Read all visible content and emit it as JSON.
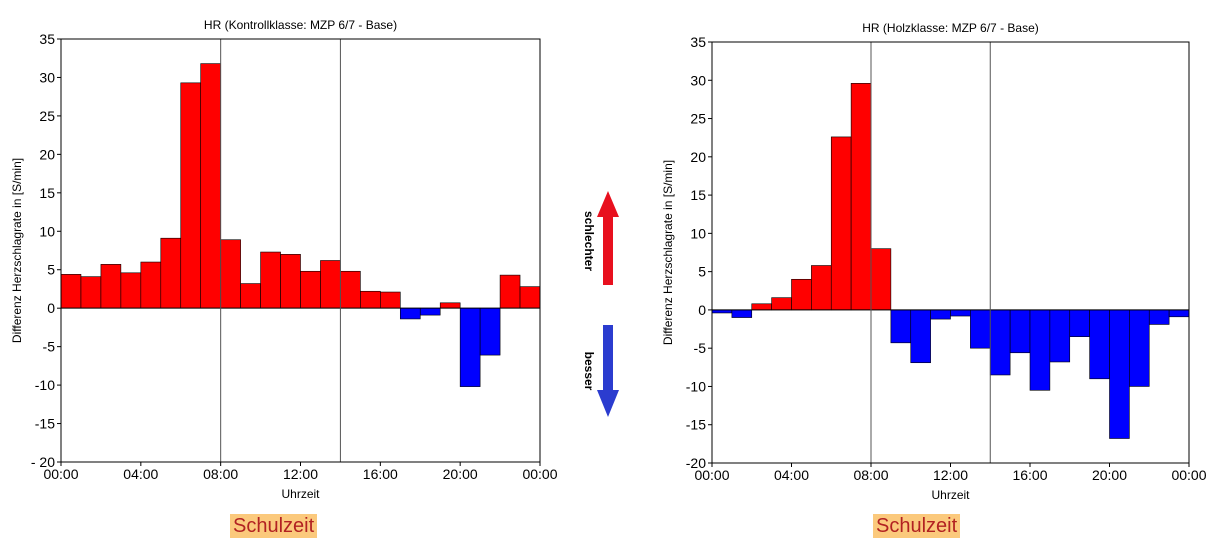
{
  "colors": {
    "positive": "#ff0000",
    "negative": "#0000ff",
    "arrow_up": "#e8101e",
    "arrow_down": "#2b3ccf",
    "badge_bg": "#fbc97c",
    "badge_text": "#b22222"
  },
  "legend": {
    "worse_label": "schlechter",
    "better_label": "besser"
  },
  "chart_data": [
    {
      "type": "bar",
      "title": "HR  (Kontrollklasse: MZP 6/7 - Base)",
      "xlabel": "Uhrzeit",
      "ylabel": "Differenz Herzschlagrate in [S/min]",
      "ylim": [
        -20,
        35
      ],
      "yticks": [
        -20,
        -15,
        -10,
        -5,
        0,
        5,
        10,
        15,
        20,
        25,
        30,
        35
      ],
      "ytick_labels": [
        "- 20",
        "-15",
        "-10",
        "-5",
        "0",
        "5",
        "10",
        "15",
        "20",
        "25",
        "30",
        "35"
      ],
      "xlim": [
        0,
        24
      ],
      "xtick_labels": [
        "00:00",
        "04:00",
        "08:00",
        "12:00",
        "16:00",
        "20:00",
        "00:00"
      ],
      "vlines": [
        8,
        14
      ],
      "grid": false,
      "x": [
        0,
        1,
        2,
        3,
        4,
        5,
        6,
        7,
        8,
        9,
        10,
        11,
        12,
        13,
        14,
        15,
        16,
        17,
        18,
        19,
        20,
        21,
        22,
        23
      ],
      "values": [
        4.4,
        4.1,
        5.7,
        4.6,
        6.0,
        9.1,
        29.3,
        31.8,
        8.9,
        3.2,
        7.3,
        7.0,
        4.8,
        6.2,
        4.8,
        2.2,
        2.1,
        -1.4,
        -0.9,
        0.7,
        -10.2,
        -6.1,
        4.3,
        2.8
      ],
      "annotation": "Schulzeit"
    },
    {
      "type": "bar",
      "title": "HR  (Holzklasse: MZP 6/7 - Base)",
      "xlabel": "Uhrzeit",
      "ylabel": "Differenz Herzschlagrate in [S/min]",
      "ylim": [
        -20,
        35
      ],
      "yticks": [
        -20,
        -15,
        -10,
        -5,
        0,
        5,
        10,
        15,
        20,
        25,
        30,
        35
      ],
      "ytick_labels": [
        "-20",
        "-15",
        "-10",
        "-5",
        "0",
        "5",
        "10",
        "15",
        "20",
        "25",
        "30",
        "35"
      ],
      "xlim": [
        0,
        24
      ],
      "xtick_labels": [
        "00:00",
        "04:00",
        "08:00",
        "12:00",
        "16:00",
        "20:00",
        "00:00"
      ],
      "vlines": [
        8,
        14
      ],
      "grid": false,
      "x": [
        0,
        1,
        2,
        3,
        4,
        5,
        6,
        7,
        8,
        9,
        10,
        11,
        12,
        13,
        14,
        15,
        16,
        17,
        18,
        19,
        20,
        21,
        22,
        23
      ],
      "values": [
        -0.4,
        -1.0,
        0.8,
        1.6,
        4.0,
        5.8,
        22.6,
        29.6,
        8.0,
        -4.3,
        -6.9,
        -1.2,
        -0.8,
        -5.0,
        -8.5,
        -5.6,
        -10.5,
        -6.8,
        -3.5,
        -9.0,
        -16.8,
        -10.0,
        -1.9,
        -0.9
      ],
      "annotation": "Schulzeit"
    }
  ]
}
